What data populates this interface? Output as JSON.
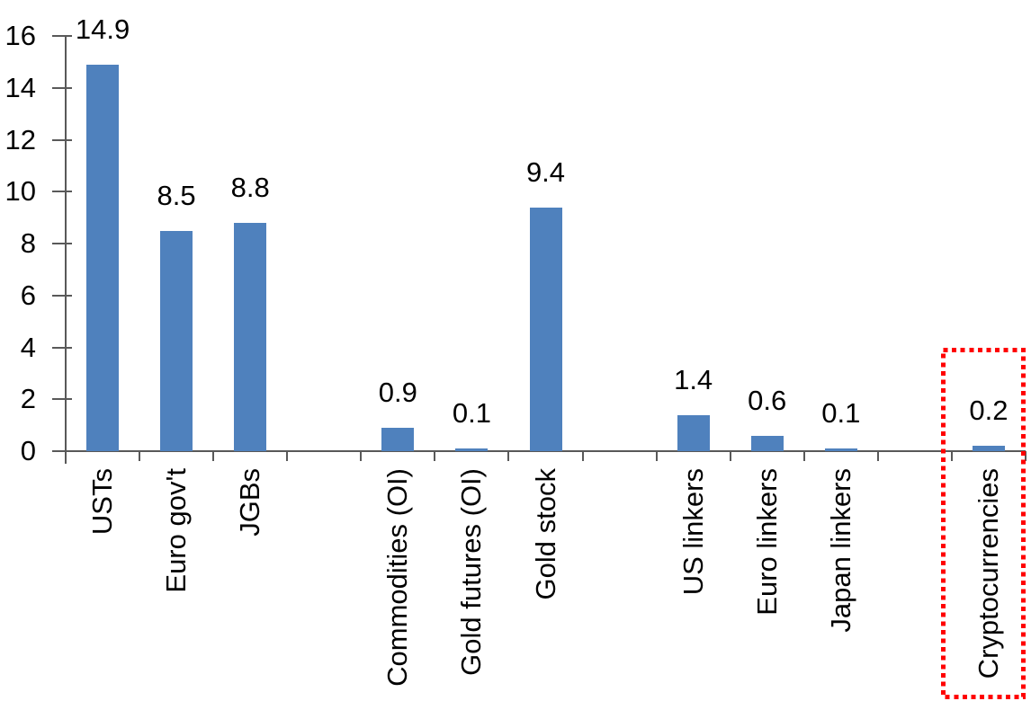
{
  "chart_data": {
    "type": "bar",
    "title": "",
    "xlabel": "",
    "ylabel": "",
    "categories": [
      "USTs",
      "Euro gov't",
      "JGBs",
      "Commodities (OI)",
      "Gold futures (OI)",
      "Gold stock",
      "US linkers",
      "Euro linkers",
      "Japan linkers",
      "Cryptocurrencies"
    ],
    "values": [
      14.9,
      8.5,
      8.8,
      0.9,
      0.1,
      9.4,
      1.4,
      0.6,
      0.1,
      0.2
    ],
    "data_labels": [
      "14.9",
      "8.5",
      "8.8",
      "0.9",
      "0.1",
      "9.4",
      "1.4",
      "0.6",
      "0.1",
      "0.2"
    ],
    "slots": [
      0,
      1,
      2,
      4,
      5,
      6,
      8,
      9,
      10,
      12
    ],
    "total_slots": 13,
    "ylim": [
      0,
      16
    ],
    "yticks": [
      0,
      2,
      4,
      6,
      8,
      10,
      12,
      14,
      16
    ],
    "grid": false,
    "legend": "none",
    "bar_color": "#4f81bd",
    "axis_color": "#595959",
    "text_color": "#000000",
    "highlight": {
      "category": "Cryptocurrencies",
      "shape": "dotted-rectangle",
      "color": "#ff0000"
    }
  }
}
